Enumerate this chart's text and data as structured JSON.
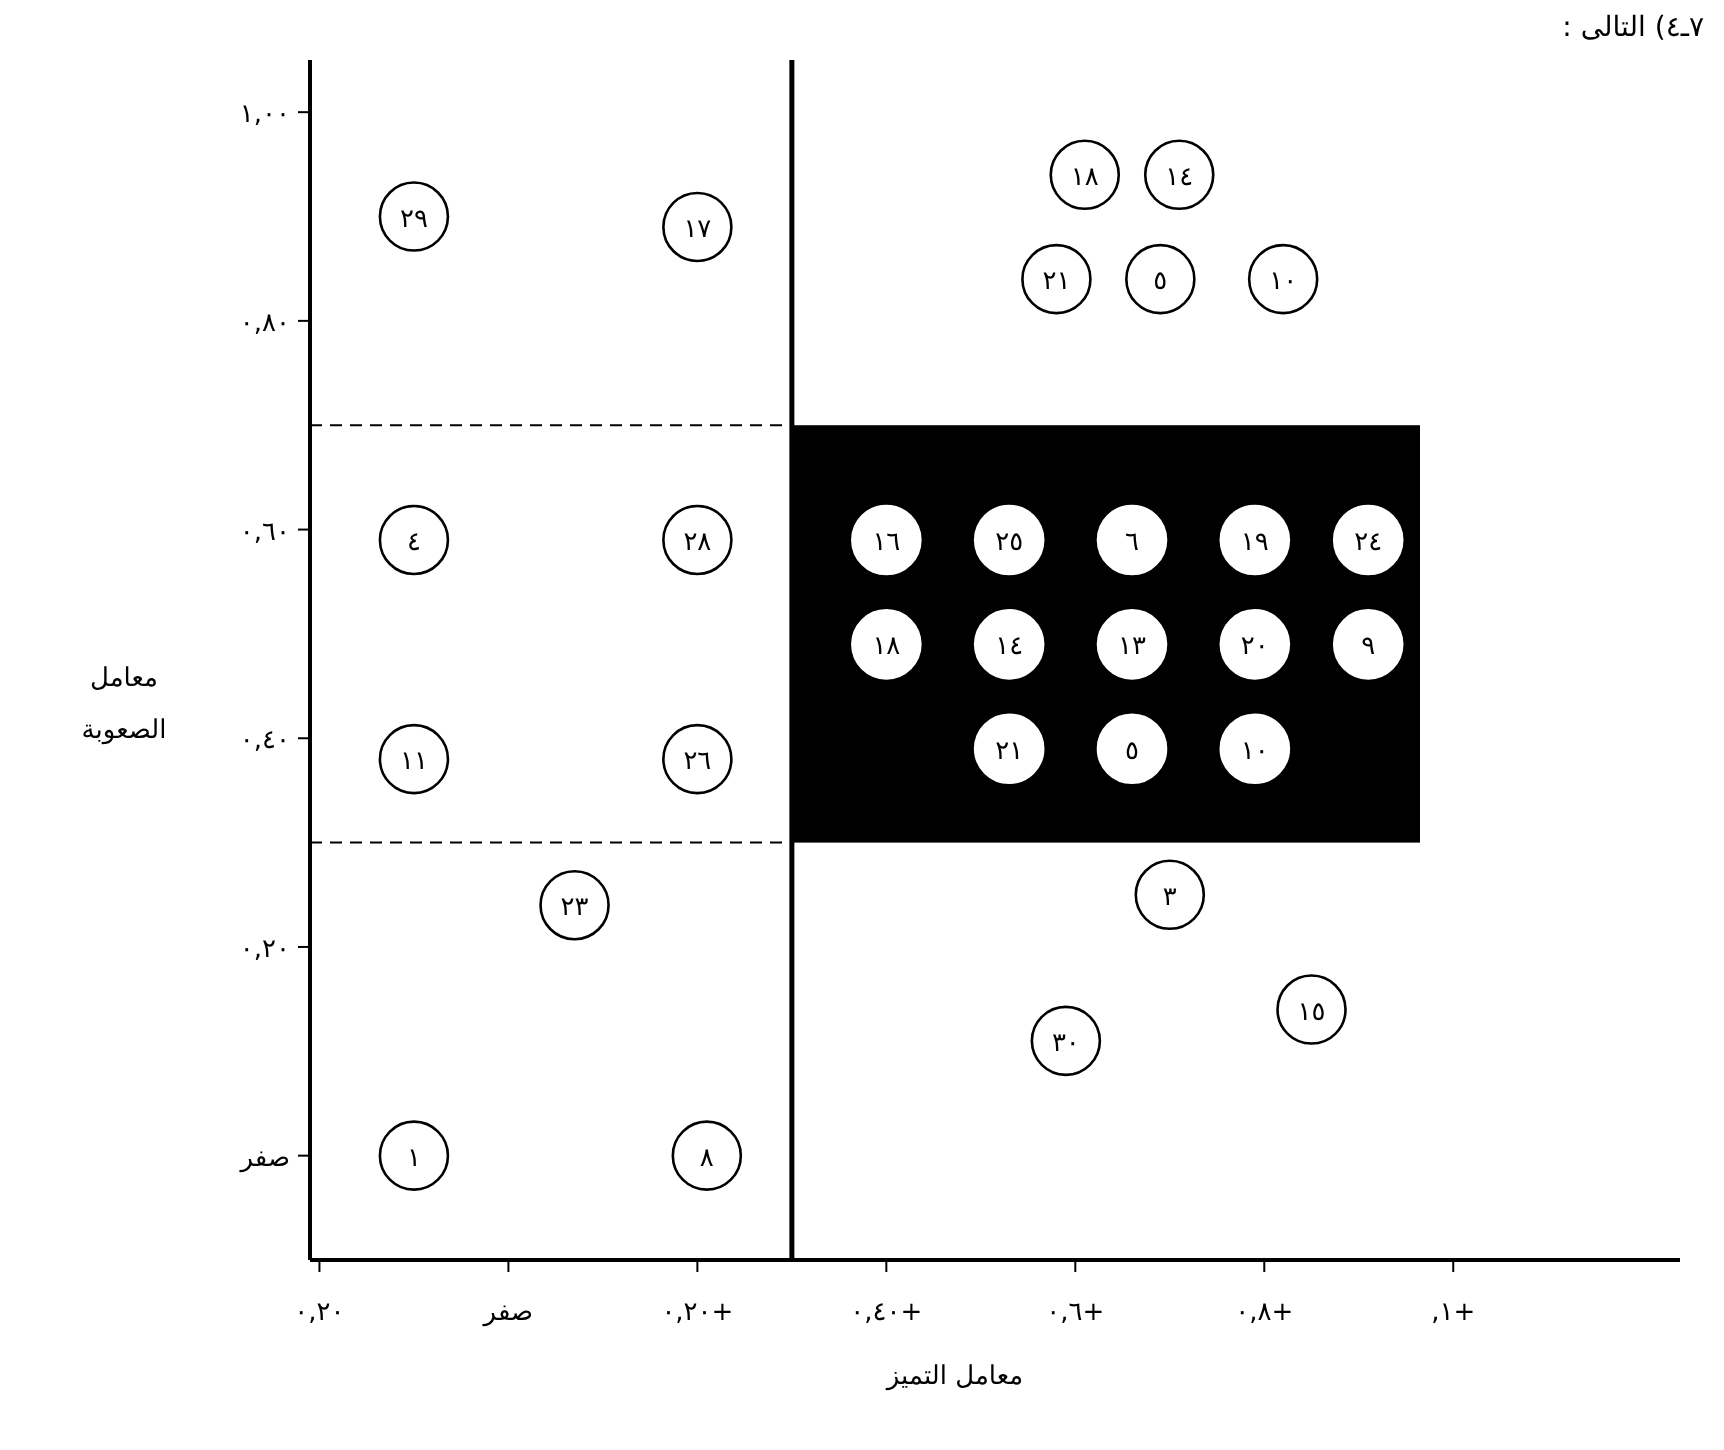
{
  "chart_data": {
    "type": "scatter",
    "xlabel": "معامل التميز",
    "ylabel": "معامل الصعوبة",
    "xlim": [
      -0.21,
      1.24
    ],
    "ylim": [
      -0.1,
      1.05
    ],
    "xticks": [
      {
        "value": -0.2,
        "label": "٠,٢٠"
      },
      {
        "value": 0,
        "label": "صفر"
      },
      {
        "value": 0.2,
        "label": "+٠,٢٠"
      },
      {
        "value": 0.4,
        "label": "+٠,٤٠"
      },
      {
        "value": 0.6,
        "label": "+٠,٦"
      },
      {
        "value": 0.8,
        "label": "+٠,٨"
      },
      {
        "value": 1,
        "label": "+١,"
      }
    ],
    "yticks": [
      {
        "value": 0,
        "label": "صفر"
      },
      {
        "value": 0.2,
        "label": "٠,٢٠"
      },
      {
        "value": 0.4,
        "label": "٠,٤٠"
      },
      {
        "value": 0.6,
        "label": "٠,٦٠"
      },
      {
        "value": 0.8,
        "label": "٠,٨٠"
      },
      {
        "value": 1,
        "label": "١,٠٠"
      }
    ],
    "grid": false,
    "marker": "circle",
    "ref_lines": [
      {
        "axis": "x",
        "value": 0.3,
        "line_style": "solid"
      },
      {
        "axis": "y",
        "value": 0.7,
        "line_style": "dashed"
      },
      {
        "axis": "y",
        "value": 0.3,
        "line_style": "dashed"
      }
    ],
    "bands": [
      {
        "axis": "y",
        "from": 0.3,
        "to": 0.7,
        "color": "#000000"
      }
    ],
    "series": [
      {
        "color": "#000000",
        "x": [
          -0.1,
          0.2,
          -0.1,
          0.2,
          -0.1,
          0.2,
          0.07,
          -0.1,
          0.21,
          0.61,
          0.71,
          0.58,
          0.69,
          0.82,
          0.7,
          0.59,
          0.85
        ],
        "values": [
          0.9,
          0.89,
          0.59,
          0.59,
          0.38,
          0.38,
          0.24,
          0,
          0,
          0.94,
          0.94,
          0.84,
          0.84,
          0.84,
          0.25,
          0.11,
          0.14
        ]
      },
      {
        "color": "#ffffff",
        "x": [
          0.4,
          0.53,
          0.66,
          0.79,
          0.91,
          0.4,
          0.53,
          0.66,
          0.79,
          0.91,
          0.53,
          0.66,
          0.79
        ],
        "values": [
          0.59,
          0.59,
          0.59,
          0.59,
          0.59,
          0.49,
          0.49,
          0.49,
          0.49,
          0.49,
          0.39,
          0.39,
          0.39
        ]
      }
    ],
    "annotations": [
      "٧ـ٤) التالى :",
      {
        "text": "٢٩",
        "x": -0.1,
        "y": 0.9
      },
      {
        "text": "١٧",
        "x": 0.2,
        "y": 0.89
      },
      {
        "text": "٤",
        "x": -0.1,
        "y": 0.59
      },
      {
        "text": "٢٨",
        "x": 0.2,
        "y": 0.59
      },
      {
        "text": "١١",
        "x": -0.1,
        "y": 0.38
      },
      {
        "text": "٢٦",
        "x": 0.2,
        "y": 0.38
      },
      {
        "text": "٢٣",
        "x": 0.07,
        "y": 0.24
      },
      {
        "text": "١",
        "x": -0.1,
        "y": 0
      },
      {
        "text": "٨",
        "x": 0.21,
        "y": 0
      },
      {
        "text": "١٨",
        "x": 0.61,
        "y": 0.94
      },
      {
        "text": "١٤",
        "x": 0.71,
        "y": 0.94
      },
      {
        "text": "٢١",
        "x": 0.58,
        "y": 0.84
      },
      {
        "text": "٥",
        "x": 0.69,
        "y": 0.84
      },
      {
        "text": "١٠",
        "x": 0.82,
        "y": 0.84
      },
      {
        "text": "٣",
        "x": 0.7,
        "y": 0.25
      },
      {
        "text": "٣٠",
        "x": 0.59,
        "y": 0.11
      },
      {
        "text": "١٥",
        "x": 0.85,
        "y": 0.14
      },
      {
        "text": "١٦",
        "x": 0.4,
        "y": 0.59
      },
      {
        "text": "٢٥",
        "x": 0.53,
        "y": 0.59
      },
      {
        "text": "٦",
        "x": 0.66,
        "y": 0.59
      },
      {
        "text": "١٩",
        "x": 0.79,
        "y": 0.59
      },
      {
        "text": "٢٤",
        "x": 0.91,
        "y": 0.59
      },
      {
        "text": "١٨",
        "x": 0.4,
        "y": 0.49
      },
      {
        "text": "١٤",
        "x": 0.53,
        "y": 0.49
      },
      {
        "text": "١٣",
        "x": 0.66,
        "y": 0.49
      },
      {
        "text": "٢٠",
        "x": 0.79,
        "y": 0.49
      },
      {
        "text": "٩",
        "x": 0.91,
        "y": 0.49
      },
      {
        "text": "٢١",
        "x": 0.53,
        "y": 0.39
      },
      {
        "text": "٥",
        "x": 0.66,
        "y": 0.39
      },
      {
        "text": "١٠",
        "x": 0.79,
        "y": 0.39
      }
    ]
  }
}
